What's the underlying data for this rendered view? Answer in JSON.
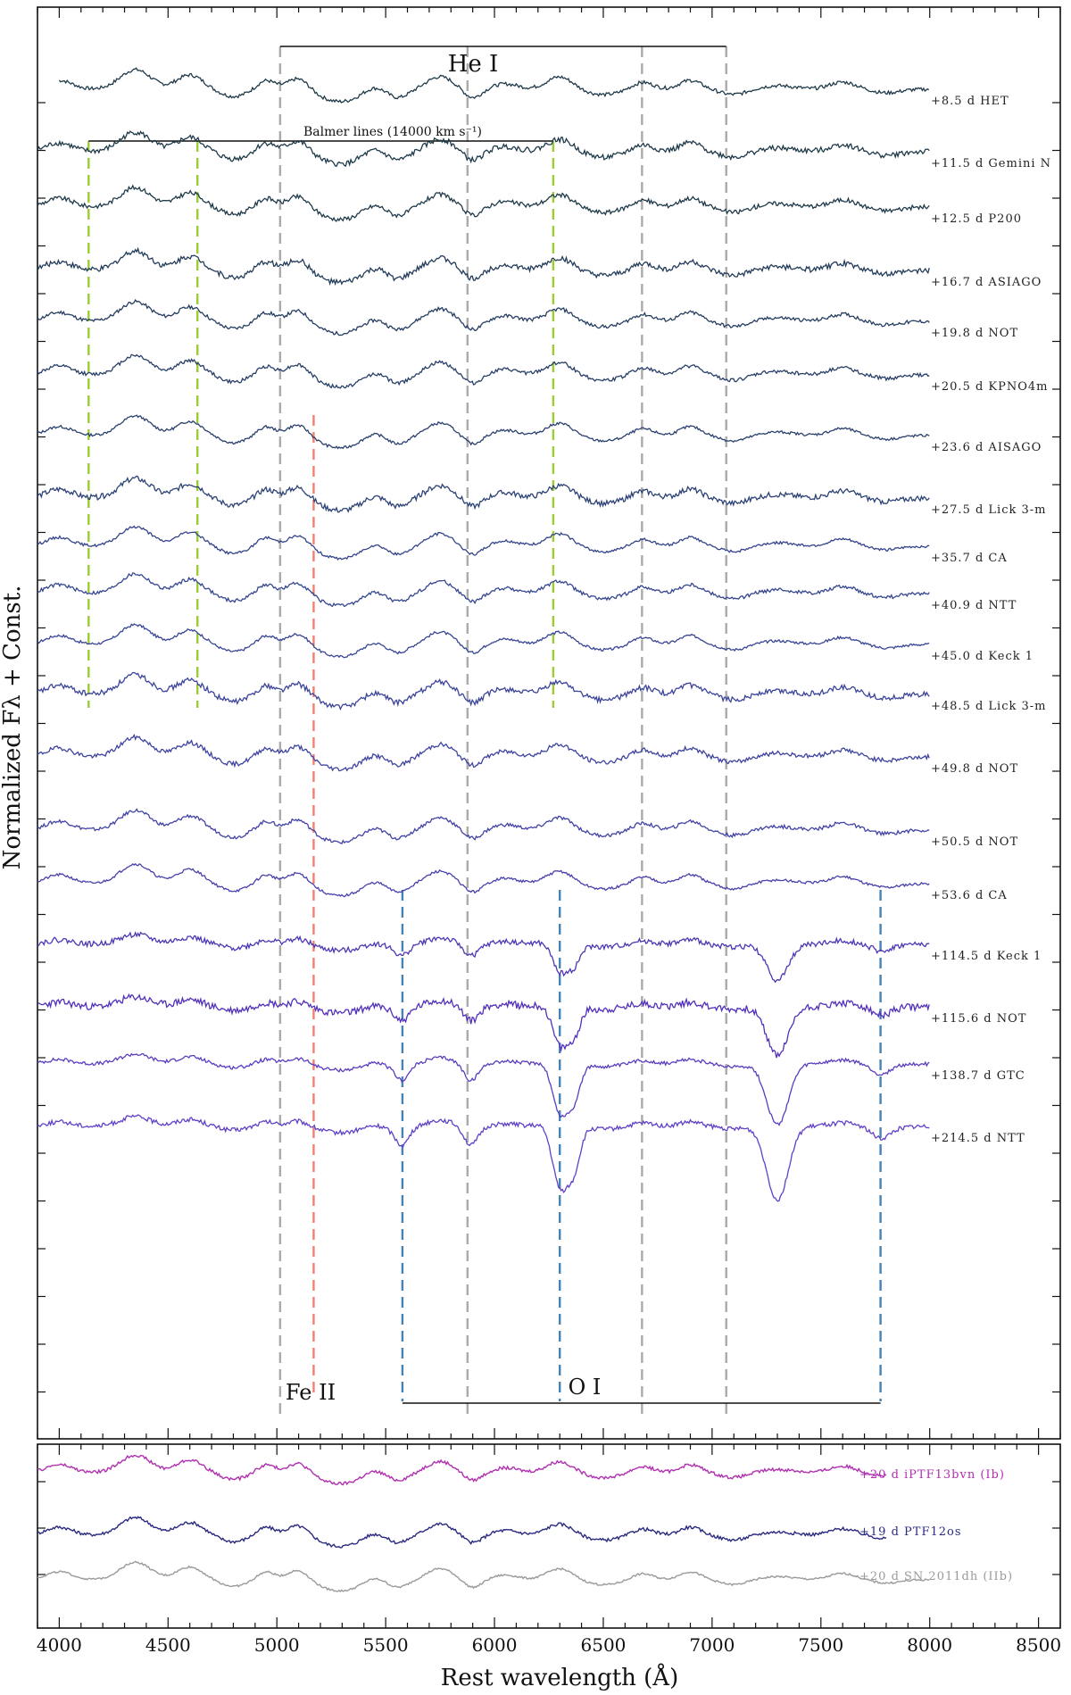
{
  "chart_data": {
    "type": "line",
    "ylabel": "Normalized Fλ + Const.",
    "xlabel": "Rest wavelength (Å)",
    "xlim": [
      3900,
      8600
    ],
    "xticks": [
      4000,
      4500,
      5000,
      5500,
      6000,
      6500,
      7000,
      7500,
      8000,
      8500
    ],
    "line_ids": [
      {
        "name": "He I",
        "label": "He I",
        "color": "#aaaaaa",
        "wavelengths": [
          5015,
          5876,
          6678,
          7065
        ]
      },
      {
        "name": "Balmer",
        "label": "Balmer lines (14000 km s⁻¹)",
        "color": "#9acd32",
        "wavelengths": [
          4135,
          4635,
          6270
        ]
      },
      {
        "name": "Fe II",
        "label": "Fe II",
        "color": "#f08070",
        "wavelengths": [
          5169
        ]
      },
      {
        "name": "O I",
        "label": "O I",
        "color": "#4682b4",
        "wavelengths": [
          5577,
          6300,
          7774
        ]
      }
    ],
    "series": [
      {
        "name": "+8.5 d HET",
        "label": "+8.5 d HET",
        "color": "#1f3a4a"
      },
      {
        "name": "+11.5 d Gemini N",
        "label": "+11.5 d Gemini N",
        "color": "#1f3a4a"
      },
      {
        "name": "+12.5 d P200",
        "label": "+12.5 d P200",
        "color": "#1f3a4a"
      },
      {
        "name": "+16.7 d ASIAGO",
        "label": "+16.7 d ASIAGO",
        "color": "#233c5a"
      },
      {
        "name": "+19.8 d NOT",
        "label": "+19.8 d NOT",
        "color": "#263e62"
      },
      {
        "name": "+20.5 d KPNO4m",
        "label": "+20.5 d KPNO4m",
        "color": "#283f68"
      },
      {
        "name": "+23.6 d AISAGO",
        "label": "+23.6 d AISAGO",
        "color": "#2a406e"
      },
      {
        "name": "+27.5 d Lick 3-m",
        "label": "+27.5 d Lick 3-m",
        "color": "#2c4276"
      },
      {
        "name": "+35.7 d CA",
        "label": "+35.7 d CA",
        "color": "#33448a"
      },
      {
        "name": "+40.9 d NTT",
        "label": "+40.9 d NTT",
        "color": "#35468f"
      },
      {
        "name": "+45.0 d Keck 1",
        "label": "+45.0 d Keck 1",
        "color": "#384594"
      },
      {
        "name": "+48.5 d Lick 3-m",
        "label": "+48.5 d Lick 3-m",
        "color": "#3b449a"
      },
      {
        "name": "+49.8 d NOT",
        "label": "+49.8 d NOT",
        "color": "#3e43a0"
      },
      {
        "name": "+50.5 d NOT",
        "label": "+50.5 d NOT",
        "color": "#4242a6"
      },
      {
        "name": "+53.6 d CA",
        "label": "+53.6 d CA",
        "color": "#4840ac"
      },
      {
        "name": "+114.5 d Keck 1",
        "label": "+114.5 d Keck 1",
        "color": "#4d36b4"
      },
      {
        "name": "+115.6 d NOT",
        "label": "+115.6 d NOT",
        "color": "#5230ba"
      },
      {
        "name": "+138.7 d GTC",
        "label": "+138.7 d GTC",
        "color": "#5a3cc0"
      },
      {
        "name": "+214.5 d NTT",
        "label": "+214.5 d NTT",
        "color": "#6040c8"
      }
    ],
    "comparison": [
      {
        "name": "+20 d iPTF13bvn (Ib)",
        "label": "+20 d iPTF13bvn (Ib)",
        "color": "#b030b0"
      },
      {
        "name": "+19 d PTF12os",
        "label": "+19 d PTF12os",
        "color": "#2a2a80"
      },
      {
        "name": "+20 d SN 2011dh (IIb)",
        "label": "+20 d SN 2011dh (IIb)",
        "color": "#9a9a9a"
      }
    ]
  }
}
